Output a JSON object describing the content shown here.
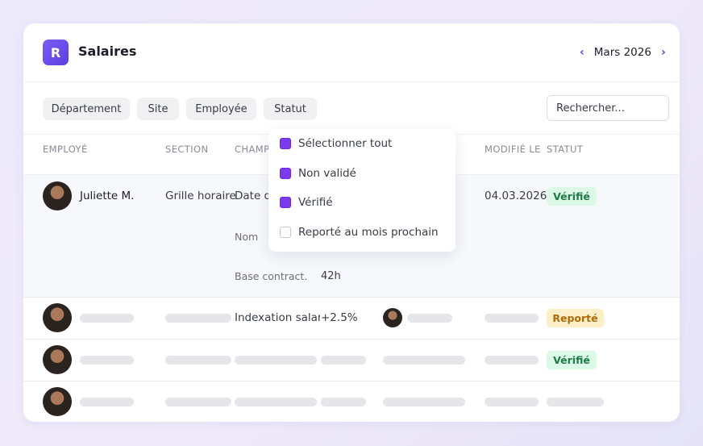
{
  "header": {
    "logo": "R",
    "title": "Salaires",
    "month": "Mars 2026"
  },
  "filters": [
    "Département",
    "Site",
    "Employée",
    "Statut"
  ],
  "search_placeholder": "Rechercher...",
  "table": {
    "columns": [
      "EMPLOYÉ",
      "SECTION",
      "CHAMP",
      "MODIFIÉ LE",
      "STATUT"
    ],
    "rows": [
      {
        "employee": "Juliette M.",
        "section": "Grille horaire",
        "field": "Date de début",
        "modified": "04.03.2026",
        "status": "Vérifié",
        "details": [
          {
            "label": "Nom"
          },
          {
            "label": "Base contract.",
            "value": "42h"
          }
        ]
      },
      {
        "field": "Indexation salariale",
        "value": "+2.5%",
        "status": "Reporté"
      },
      {
        "status": "Vérifié"
      }
    ]
  },
  "dropdown": {
    "options": [
      {
        "label": "Sélectionner tout",
        "checked": true
      },
      {
        "label": "Non validé",
        "checked": true
      },
      {
        "label": "Vérifié",
        "checked": true
      },
      {
        "label": "Reporté au mois prochain",
        "checked": false
      }
    ]
  }
}
